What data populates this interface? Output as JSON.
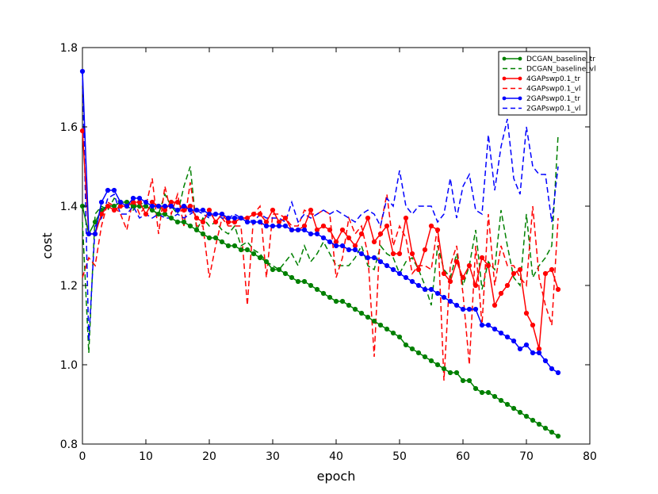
{
  "chart_data": {
    "type": "line",
    "xlabel": "epoch",
    "ylabel": "cost",
    "xlim": [
      0,
      80
    ],
    "ylim": [
      0.8,
      1.8
    ],
    "xticks": [
      0,
      10,
      20,
      30,
      40,
      50,
      60,
      70,
      80
    ],
    "yticks": [
      0.8,
      1.0,
      1.2,
      1.4,
      1.6,
      1.8
    ],
    "xtick_labels": [
      "0",
      "10",
      "20",
      "30",
      "40",
      "50",
      "60",
      "70",
      "80"
    ],
    "ytick_labels": [
      "0.8",
      "1.0",
      "1.2",
      "1.4",
      "1.6",
      "1.8"
    ],
    "grid": false,
    "legend_position": "top-right",
    "x": [
      0,
      1,
      2,
      3,
      4,
      5,
      6,
      7,
      8,
      9,
      10,
      11,
      12,
      13,
      14,
      15,
      16,
      17,
      18,
      19,
      20,
      21,
      22,
      23,
      24,
      25,
      26,
      27,
      28,
      29,
      30,
      31,
      32,
      33,
      34,
      35,
      36,
      37,
      38,
      39,
      40,
      41,
      42,
      43,
      44,
      45,
      46,
      47,
      48,
      49,
      50,
      51,
      52,
      53,
      54,
      55,
      56,
      57,
      58,
      59,
      60,
      61,
      62,
      63,
      64,
      65,
      66,
      67,
      68,
      69,
      70,
      71,
      72,
      73,
      74,
      75
    ],
    "series": [
      {
        "name": "DCGAN_baseline_tr",
        "color": "#008000",
        "style": "solid-marker",
        "values": [
          1.4,
          1.33,
          1.36,
          1.39,
          1.4,
          1.4,
          1.41,
          1.41,
          1.4,
          1.4,
          1.4,
          1.39,
          1.38,
          1.38,
          1.37,
          1.36,
          1.36,
          1.35,
          1.34,
          1.33,
          1.32,
          1.32,
          1.31,
          1.3,
          1.3,
          1.29,
          1.29,
          1.28,
          1.27,
          1.26,
          1.24,
          1.24,
          1.23,
          1.22,
          1.21,
          1.21,
          1.2,
          1.19,
          1.18,
          1.17,
          1.16,
          1.16,
          1.15,
          1.14,
          1.13,
          1.12,
          1.11,
          1.1,
          1.09,
          1.08,
          1.07,
          1.05,
          1.04,
          1.03,
          1.02,
          1.01,
          1.0,
          0.99,
          0.98,
          0.98,
          0.96,
          0.96,
          0.94,
          0.93,
          0.93,
          0.92,
          0.91,
          0.9,
          0.89,
          0.88,
          0.87,
          0.86,
          0.85,
          0.84,
          0.83,
          0.82
        ]
      },
      {
        "name": "DCGAN_baseline_vl",
        "color": "#008000",
        "style": "dashed",
        "values": [
          1.36,
          1.03,
          1.38,
          1.4,
          1.39,
          1.42,
          1.41,
          1.4,
          1.39,
          1.41,
          1.4,
          1.39,
          1.38,
          1.43,
          1.4,
          1.38,
          1.45,
          1.5,
          1.34,
          1.37,
          1.35,
          1.36,
          1.34,
          1.33,
          1.35,
          1.3,
          1.31,
          1.29,
          1.28,
          1.26,
          1.25,
          1.24,
          1.26,
          1.28,
          1.25,
          1.3,
          1.26,
          1.28,
          1.31,
          1.28,
          1.25,
          1.25,
          1.25,
          1.27,
          1.3,
          1.25,
          1.24,
          1.3,
          1.28,
          1.27,
          1.23,
          1.26,
          1.27,
          1.24,
          1.2,
          1.15,
          1.3,
          1.24,
          1.22,
          1.28,
          1.2,
          1.25,
          1.34,
          1.19,
          1.26,
          1.24,
          1.39,
          1.3,
          1.22,
          1.2,
          1.38,
          1.22,
          1.25,
          1.27,
          1.3,
          1.58
        ]
      },
      {
        "name": "4GAPswp0.1_tr",
        "color": "#ff0000",
        "style": "solid-marker",
        "values": [
          1.59,
          1.33,
          1.33,
          1.38,
          1.4,
          1.39,
          1.4,
          1.4,
          1.41,
          1.41,
          1.38,
          1.41,
          1.4,
          1.39,
          1.41,
          1.41,
          1.39,
          1.4,
          1.37,
          1.36,
          1.39,
          1.36,
          1.38,
          1.36,
          1.36,
          1.37,
          1.37,
          1.38,
          1.38,
          1.36,
          1.39,
          1.36,
          1.37,
          1.34,
          1.34,
          1.35,
          1.39,
          1.34,
          1.35,
          1.34,
          1.31,
          1.34,
          1.32,
          1.3,
          1.33,
          1.37,
          1.31,
          1.33,
          1.35,
          1.28,
          1.28,
          1.37,
          1.28,
          1.24,
          1.29,
          1.35,
          1.34,
          1.23,
          1.21,
          1.26,
          1.22,
          1.25,
          1.2,
          1.27,
          1.25,
          1.15,
          1.18,
          1.2,
          1.23,
          1.24,
          1.13,
          1.1,
          1.04,
          1.23,
          1.24,
          1.19
        ]
      },
      {
        "name": "4GAPswp0.1_vl",
        "color": "#ff0000",
        "style": "dashed",
        "values": [
          1.22,
          1.27,
          1.25,
          1.35,
          1.41,
          1.4,
          1.38,
          1.34,
          1.42,
          1.38,
          1.4,
          1.47,
          1.33,
          1.45,
          1.38,
          1.43,
          1.35,
          1.46,
          1.35,
          1.35,
          1.22,
          1.3,
          1.37,
          1.35,
          1.35,
          1.35,
          1.15,
          1.38,
          1.4,
          1.22,
          1.38,
          1.38,
          1.37,
          1.35,
          1.35,
          1.39,
          1.38,
          1.38,
          1.39,
          1.38,
          1.22,
          1.27,
          1.37,
          1.33,
          1.35,
          1.28,
          1.02,
          1.35,
          1.43,
          1.3,
          1.35,
          1.32,
          1.23,
          1.25,
          1.25,
          1.24,
          1.35,
          0.96,
          1.25,
          1.3,
          1.18,
          1.0,
          1.3,
          1.1,
          1.38,
          1.2,
          1.3,
          1.25,
          1.25,
          1.22,
          1.2,
          1.4,
          1.22,
          1.15,
          1.1,
          1.37
        ]
      },
      {
        "name": "2GAPswp0.1_tr",
        "color": "#0000ff",
        "style": "solid-marker",
        "values": [
          1.74,
          1.33,
          1.33,
          1.41,
          1.44,
          1.44,
          1.41,
          1.4,
          1.42,
          1.42,
          1.41,
          1.4,
          1.4,
          1.4,
          1.4,
          1.39,
          1.4,
          1.39,
          1.39,
          1.39,
          1.38,
          1.38,
          1.38,
          1.37,
          1.37,
          1.37,
          1.36,
          1.36,
          1.36,
          1.35,
          1.35,
          1.35,
          1.35,
          1.34,
          1.34,
          1.34,
          1.33,
          1.33,
          1.32,
          1.31,
          1.3,
          1.3,
          1.29,
          1.29,
          1.28,
          1.27,
          1.27,
          1.26,
          1.25,
          1.24,
          1.23,
          1.22,
          1.21,
          1.2,
          1.19,
          1.19,
          1.18,
          1.17,
          1.16,
          1.15,
          1.14,
          1.14,
          1.14,
          1.1,
          1.1,
          1.09,
          1.08,
          1.07,
          1.06,
          1.04,
          1.05,
          1.03,
          1.03,
          1.01,
          0.99,
          0.98
        ]
      },
      {
        "name": "2GAPswp0.1_vl",
        "color": "#0000ff",
        "style": "dashed",
        "values": [
          1.74,
          1.06,
          1.35,
          1.37,
          1.42,
          1.43,
          1.38,
          1.38,
          1.4,
          1.37,
          1.38,
          1.37,
          1.38,
          1.37,
          1.37,
          1.38,
          1.37,
          1.38,
          1.39,
          1.38,
          1.37,
          1.38,
          1.37,
          1.37,
          1.38,
          1.37,
          1.37,
          1.36,
          1.38,
          1.37,
          1.37,
          1.37,
          1.36,
          1.41,
          1.36,
          1.38,
          1.37,
          1.38,
          1.39,
          1.38,
          1.39,
          1.38,
          1.37,
          1.36,
          1.38,
          1.39,
          1.38,
          1.35,
          1.42,
          1.4,
          1.49,
          1.4,
          1.38,
          1.4,
          1.4,
          1.4,
          1.36,
          1.38,
          1.47,
          1.37,
          1.45,
          1.48,
          1.39,
          1.38,
          1.58,
          1.44,
          1.55,
          1.62,
          1.47,
          1.43,
          1.6,
          1.5,
          1.48,
          1.48,
          1.36,
          1.5
        ]
      }
    ]
  }
}
